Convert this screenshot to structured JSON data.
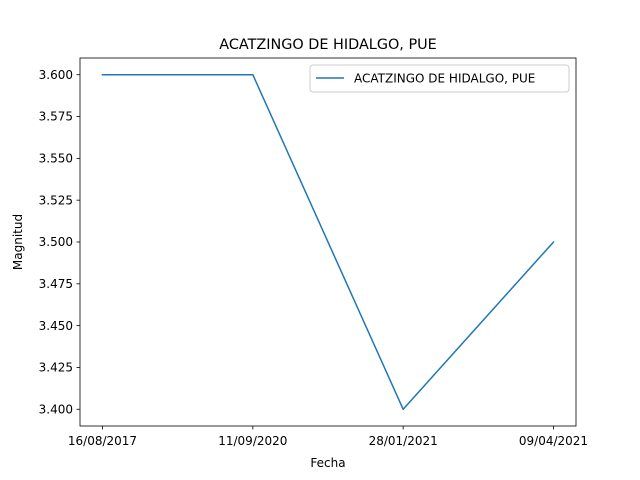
{
  "chart_data": {
    "type": "line",
    "title": "ACATZINGO DE HIDALGO, PUE",
    "xlabel": "Fecha",
    "ylabel": "Magnitud",
    "categories": [
      "16/08/2017",
      "11/09/2020",
      "28/01/2021",
      "09/04/2021"
    ],
    "series": [
      {
        "name": "ACATZINGO DE HIDALGO, PUE",
        "values": [
          3.6,
          3.6,
          3.4,
          3.5
        ],
        "color": "#1f77b4"
      }
    ],
    "ylim": [
      3.39,
      3.61
    ],
    "yticks": [
      "3.400",
      "3.425",
      "3.450",
      "3.475",
      "3.500",
      "3.525",
      "3.550",
      "3.575",
      "3.600"
    ],
    "grid": false,
    "legend_position": "top-right"
  }
}
